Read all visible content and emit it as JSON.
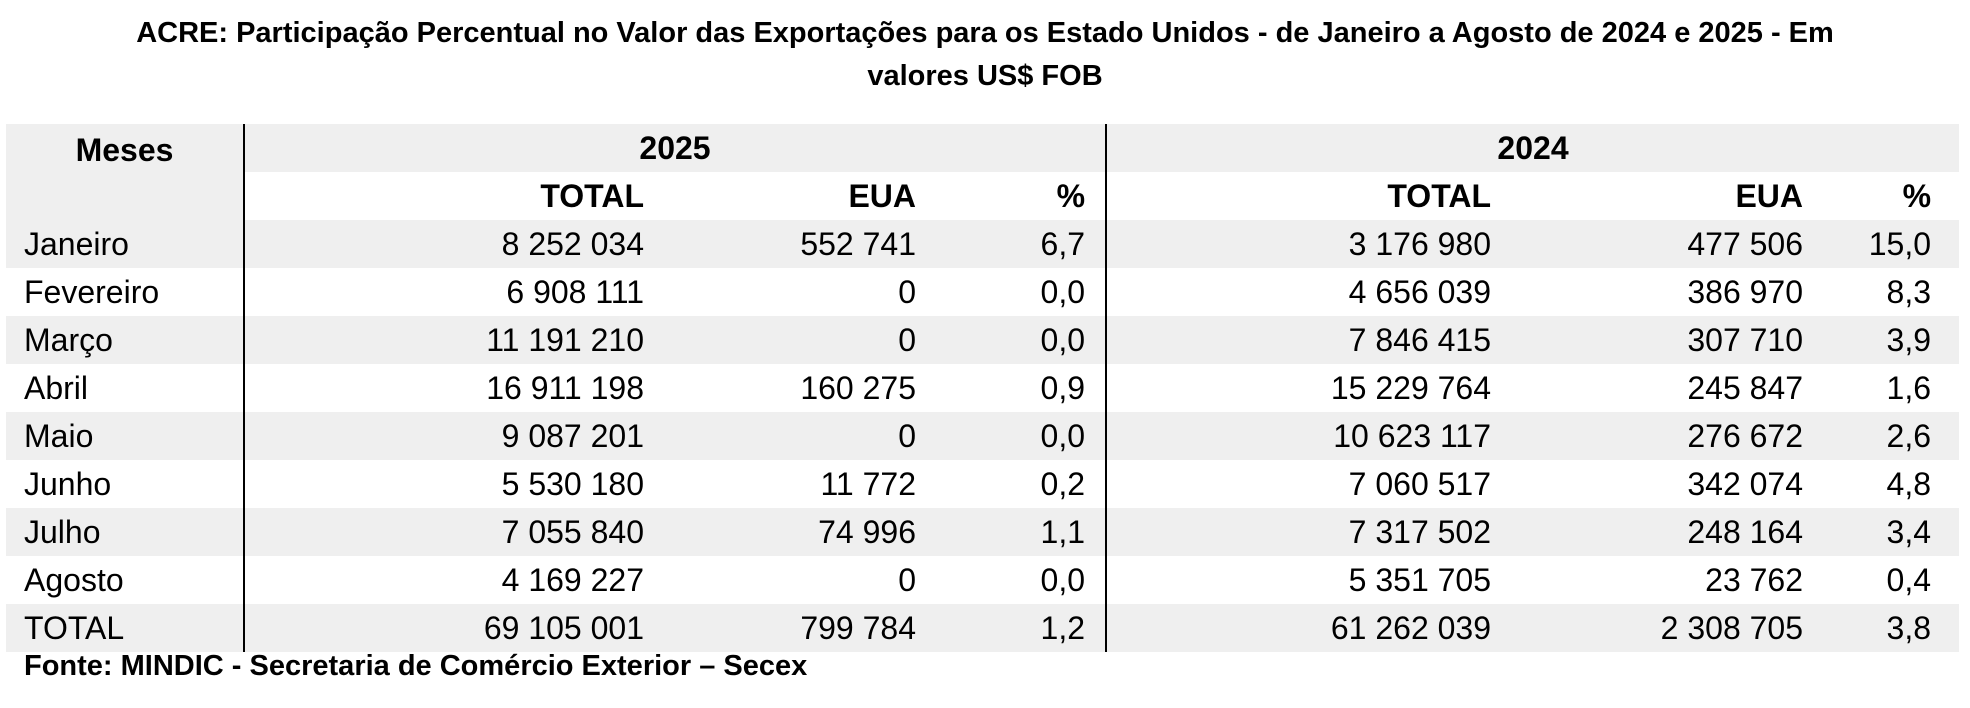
{
  "title": {
    "line1": "ACRE: Participação Percentual no Valor das Exportações para os Estado Unidos - de Janeiro a Agosto de 2024 e 2025 - Em",
    "line2": "valores US$ FOB"
  },
  "table": {
    "header_months": "Meses",
    "year_2025": "2025",
    "year_2024": "2024",
    "sub_total": "TOTAL",
    "sub_eua": "EUA",
    "sub_pct": "%",
    "rows": [
      {
        "mes": "Janeiro",
        "total_2025": "8 252 034",
        "eua_2025": "552 741",
        "pct_2025": "6,7",
        "total_2024": "3 176 980",
        "eua_2024": "477 506",
        "pct_2024": "15,0"
      },
      {
        "mes": "Fevereiro",
        "total_2025": "6 908 111",
        "eua_2025": "0",
        "pct_2025": "0,0",
        "total_2024": "4 656 039",
        "eua_2024": "386 970",
        "pct_2024": "8,3"
      },
      {
        "mes": "Março",
        "total_2025": "11 191 210",
        "eua_2025": "0",
        "pct_2025": "0,0",
        "total_2024": "7 846 415",
        "eua_2024": "307 710",
        "pct_2024": "3,9"
      },
      {
        "mes": "Abril",
        "total_2025": "16 911 198",
        "eua_2025": "160 275",
        "pct_2025": "0,9",
        "total_2024": "15 229 764",
        "eua_2024": "245 847",
        "pct_2024": "1,6"
      },
      {
        "mes": "Maio",
        "total_2025": "9 087 201",
        "eua_2025": "0",
        "pct_2025": "0,0",
        "total_2024": "10 623 117",
        "eua_2024": "276 672",
        "pct_2024": "2,6"
      },
      {
        "mes": "Junho",
        "total_2025": "5 530 180",
        "eua_2025": "11 772",
        "pct_2025": "0,2",
        "total_2024": "7 060 517",
        "eua_2024": "342 074",
        "pct_2024": "4,8"
      },
      {
        "mes": "Julho",
        "total_2025": "7 055 840",
        "eua_2025": "74 996",
        "pct_2025": "1,1",
        "total_2024": "7 317 502",
        "eua_2024": "248 164",
        "pct_2024": "3,4"
      },
      {
        "mes": "Agosto",
        "total_2025": "4 169 227",
        "eua_2025": "0",
        "pct_2025": "0,0",
        "total_2024": "5 351 705",
        "eua_2024": "23 762",
        "pct_2024": "0,4"
      },
      {
        "mes": "TOTAL",
        "total_2025": "69 105 001",
        "eua_2025": "799 784",
        "pct_2025": "1,2",
        "total_2024": "61 262 039",
        "eua_2024": "2 308 705",
        "pct_2024": "3,8"
      }
    ]
  },
  "footer": {
    "source": "Fonte: MINDIC - Secretaria de Comércio Exterior – Secex"
  }
}
